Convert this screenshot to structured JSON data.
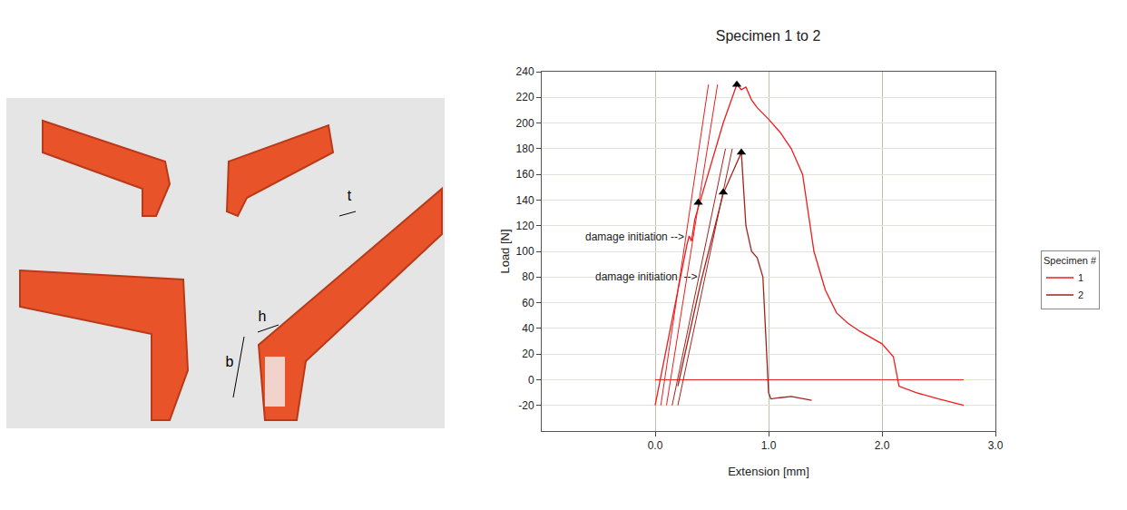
{
  "chart_data": {
    "type": "line",
    "title": "Specimen 1 to 2",
    "x_label": "Extension [mm]",
    "y_label": "Load [N]",
    "xlim": [
      -1,
      3
    ],
    "ylim": [
      -40,
      240
    ],
    "xticks": [
      {
        "value": 0,
        "label": "0.0"
      },
      {
        "value": 1,
        "label": "1.0"
      },
      {
        "value": 2,
        "label": "2.0"
      },
      {
        "value": 3,
        "label": "3.0"
      }
    ],
    "yticks": [
      -20,
      0,
      20,
      40,
      60,
      80,
      100,
      120,
      140,
      160,
      180,
      200,
      220,
      240
    ],
    "grid": true,
    "legend": "right",
    "legend_title": "Specimen #",
    "marker": "triangle-up",
    "series": [
      {
        "name": "1",
        "color": "#ee1c1c",
        "x": [
          0,
          0.1,
          0.2,
          0.28,
          0.3,
          0.32,
          0.35,
          0.4,
          0.5,
          0.6,
          0.7,
          0.72,
          0.76,
          0.8,
          0.85,
          0.9,
          1.0,
          1.1,
          1.2,
          1.3,
          1.35,
          1.4,
          1.5,
          1.6,
          1.7,
          1.8,
          2.0,
          2.1,
          2.15,
          2.3,
          2.5,
          2.72
        ],
        "values": [
          -20,
          25,
          68,
          105,
          112,
          108,
          125,
          140,
          170,
          200,
          225,
          230,
          226,
          228,
          218,
          212,
          203,
          193,
          180,
          160,
          130,
          100,
          70,
          52,
          44,
          38,
          28,
          18,
          -5,
          -10,
          -15,
          -20
        ]
      },
      {
        "name": "2",
        "color": "#a3231c",
        "x": [
          0.2,
          0.3,
          0.4,
          0.5,
          0.6,
          0.7,
          0.76,
          0.8,
          0.85,
          0.9,
          0.95,
          1.0,
          1.02,
          1.1,
          1.2,
          1.38
        ],
        "values": [
          -5,
          35,
          75,
          110,
          145,
          165,
          177,
          120,
          100,
          95,
          80,
          -10,
          -15,
          -14,
          -13,
          -16
        ]
      }
    ],
    "markers": [
      {
        "series": "1",
        "x": 0.38,
        "y": 138
      },
      {
        "series": "1",
        "x": 0.72,
        "y": 230
      },
      {
        "series": "2",
        "x": 0.6,
        "y": 146
      },
      {
        "series": "2",
        "x": 0.76,
        "y": 177
      }
    ],
    "reference_lines": [
      {
        "x": [
          0.0,
          2.72
        ],
        "y": [
          0,
          0
        ],
        "color": "#ee1c1c"
      },
      {
        "x": [
          0.05,
          0.47
        ],
        "y": [
          -20,
          230
        ],
        "color": "#ee1c1c"
      },
      {
        "x": [
          0.1,
          0.55
        ],
        "y": [
          -20,
          230
        ],
        "color": "#ee1c1c"
      },
      {
        "x": [
          0.15,
          0.62
        ],
        "y": [
          -20,
          180
        ],
        "color": "#a3231c"
      },
      {
        "x": [
          0.2,
          0.68
        ],
        "y": [
          -20,
          180
        ],
        "color": "#a3231c"
      }
    ],
    "annotations": [
      {
        "text": "damage initiation -->",
        "x": 0.27,
        "y": 111
      },
      {
        "text": "damage initiation  -->",
        "x": 0.38,
        "y": 80
      }
    ]
  },
  "image_labels": [
    "b",
    "h",
    "t"
  ]
}
